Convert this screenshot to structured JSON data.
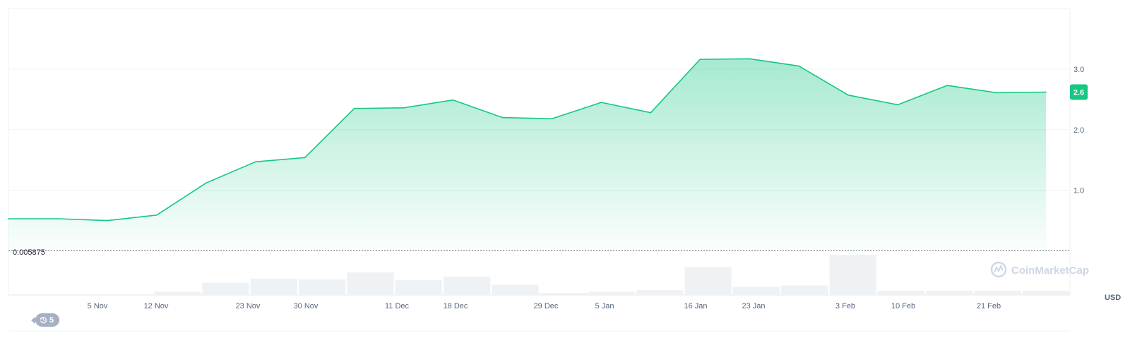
{
  "chart_data": {
    "type": "area",
    "series": [
      {
        "values": [
          0.53,
          0.53,
          0.5,
          0.59,
          1.12,
          1.47,
          1.54,
          2.35,
          2.36,
          2.49,
          2.2,
          2.18,
          2.45,
          2.28,
          3.16,
          3.17,
          3.05,
          2.57,
          2.41,
          2.73,
          2.61,
          2.62
        ]
      }
    ],
    "volume": [
      0.0,
      0.0,
      0.0,
      0.08,
      0.3,
      0.4,
      0.38,
      0.55,
      0.36,
      0.45,
      0.25,
      0.05,
      0.08,
      0.12,
      0.68,
      0.2,
      0.23,
      0.98,
      0.1,
      0.1,
      0.1,
      0.1
    ],
    "x_ticks": [
      "5 Nov",
      "12 Nov",
      "23 Nov",
      "30 Nov",
      "11 Dec",
      "18 Dec",
      "29 Dec",
      "5 Jan",
      "16 Jan",
      "23 Jan",
      "3 Feb",
      "10 Feb",
      "21 Feb"
    ],
    "y_ticks": [
      "1.0",
      "2.0",
      "3.0"
    ],
    "y_tick_values": [
      1.0,
      2.0,
      3.0
    ],
    "ylim": [
      0.005875,
      4.0
    ],
    "baseline_label": "0.005875",
    "current_price": "2.6",
    "currency": "USD",
    "history_count": "5",
    "watermark": "CoinMarketCap",
    "grid": true,
    "colors": {
      "line": "#16c784",
      "fill_top": "#16c784",
      "volume_bar": "#eff2f5",
      "grid": "#eff2f5",
      "badge": "#16c784",
      "history_pill": "#a6b0c3"
    }
  }
}
